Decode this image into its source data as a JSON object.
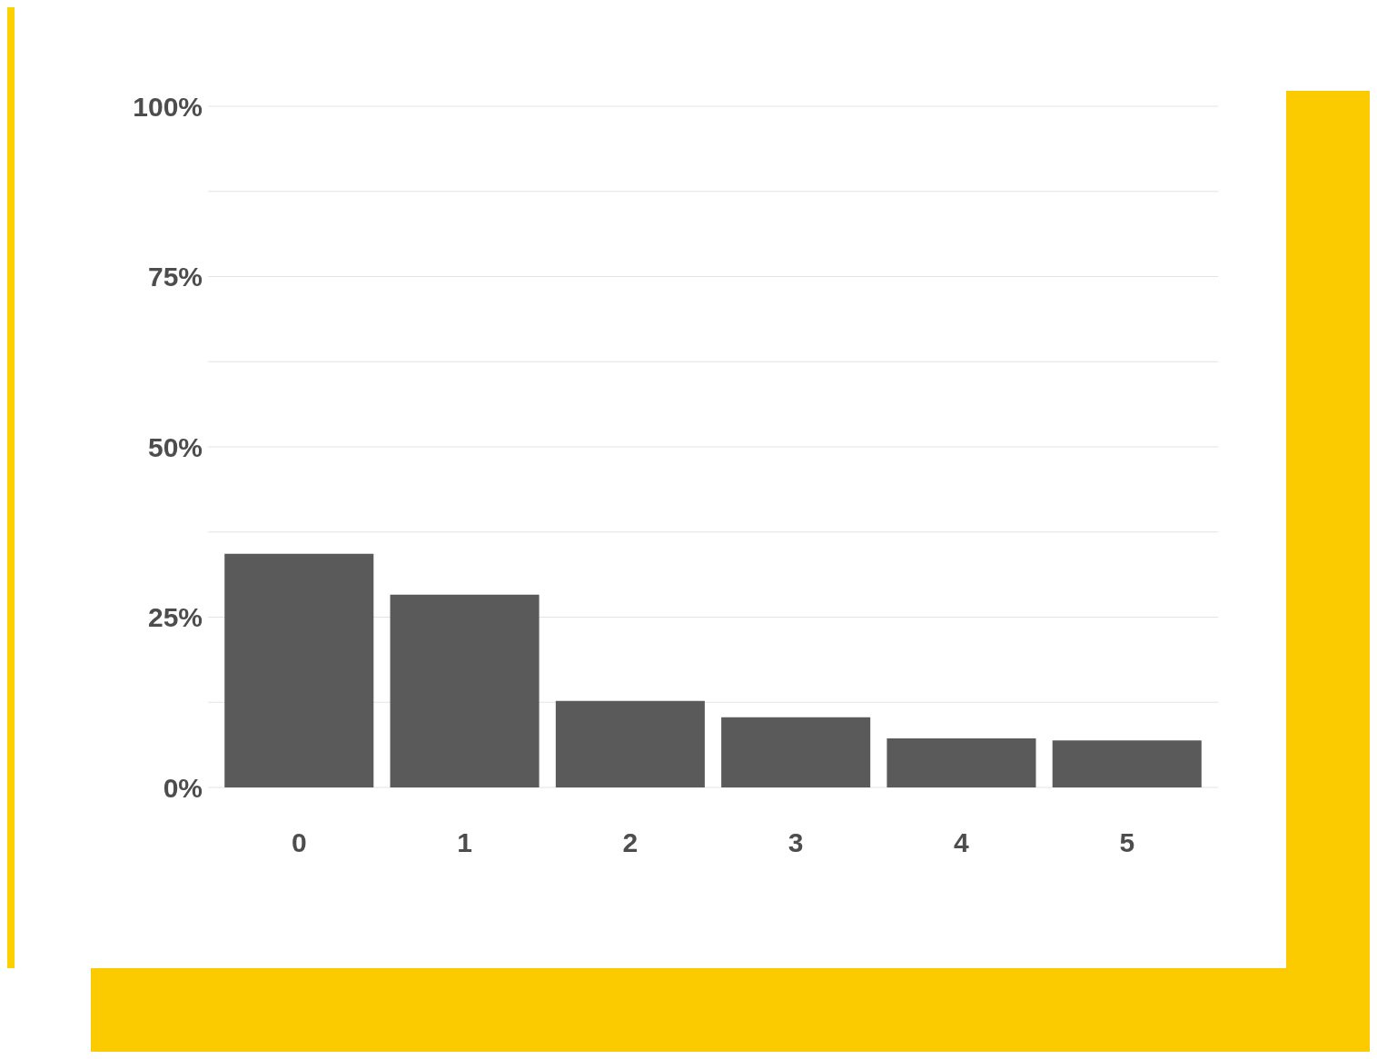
{
  "chart_data": {
    "type": "bar",
    "categories": [
      "0",
      "1",
      "2",
      "3",
      "4",
      "5"
    ],
    "values": [
      34.3,
      28.3,
      12.7,
      10.3,
      7.2,
      6.9
    ],
    "color": "#5a5a5a",
    "ylim": [
      0,
      100
    ],
    "yticks": [
      {
        "value": 0,
        "label": "0%"
      },
      {
        "value": 12.5,
        "label": null
      },
      {
        "value": 25,
        "label": "25%"
      },
      {
        "value": 37.5,
        "label": null
      },
      {
        "value": 50,
        "label": "50%"
      },
      {
        "value": 62.5,
        "label": null
      },
      {
        "value": 75,
        "label": "75%"
      },
      {
        "value": 87.5,
        "label": null
      },
      {
        "value": 100,
        "label": "100%"
      }
    ],
    "grid": "y"
  }
}
